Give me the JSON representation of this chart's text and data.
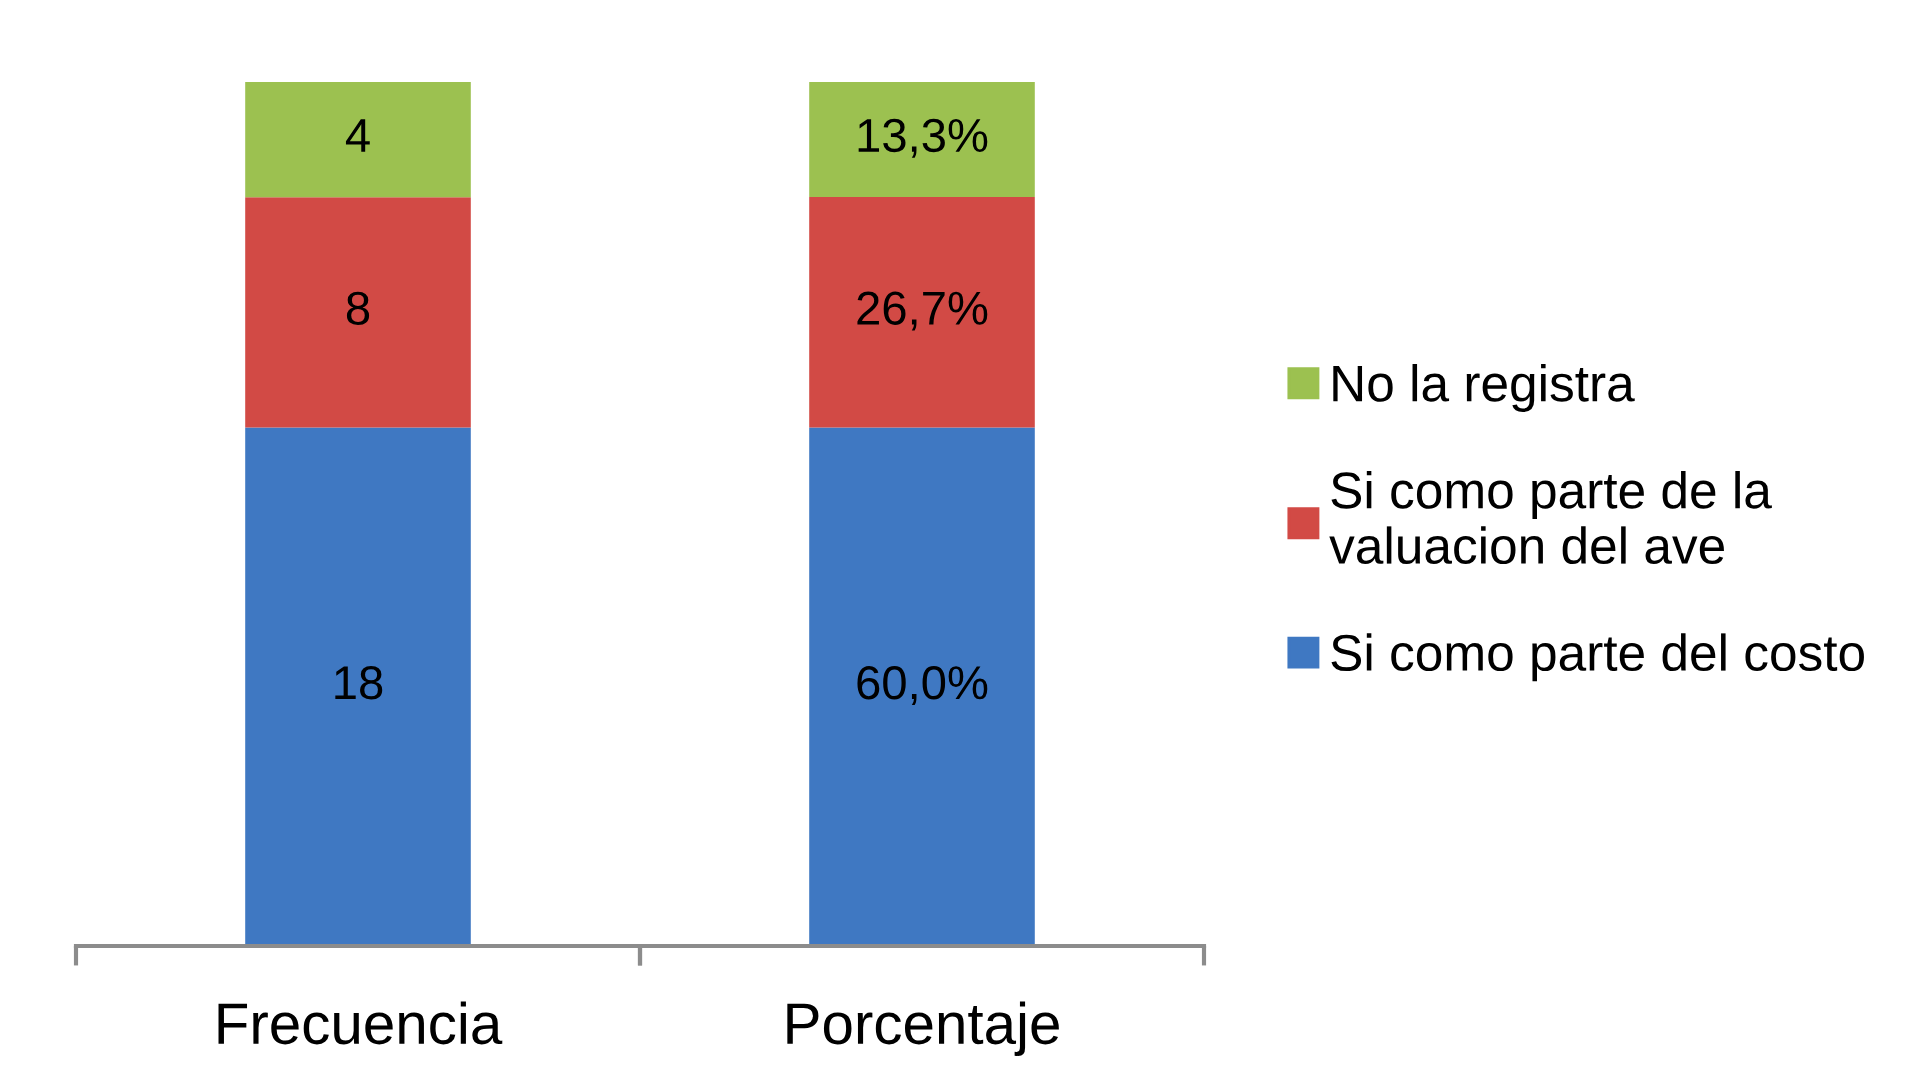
{
  "chart_data": [
    {
      "type": "bar",
      "categories": [
        "Frecuencia"
      ],
      "stacked": true,
      "ylim": [
        0,
        30
      ],
      "tick_labels": "x",
      "data_labels": true,
      "series": [
        {
          "color": "#3f78c2",
          "values": [
            18
          ]
        },
        {
          "color": "#d24a45",
          "values": [
            8
          ]
        },
        {
          "color": "#9cc150",
          "values": [
            4
          ]
        }
      ]
    },
    {
      "type": "bar",
      "categories": [
        "Porcentaje"
      ],
      "stacked": true,
      "ylim": [
        0,
        100
      ],
      "tick_labels": "x",
      "legend": "right",
      "series": [
        {
          "name": "Si como parte del costo",
          "color": "#3f78c2",
          "values": [
            60.0
          ],
          "value_labels": [
            "60,0%"
          ]
        },
        {
          "name": "Si como parte de la valuacion del ave",
          "color": "#d24a45",
          "values": [
            26.7
          ],
          "value_labels": [
            "26,7%"
          ]
        },
        {
          "name": "No la registra",
          "color": "#9cc150",
          "values": [
            13.3
          ],
          "value_labels": [
            "13,3%"
          ]
        }
      ]
    }
  ]
}
